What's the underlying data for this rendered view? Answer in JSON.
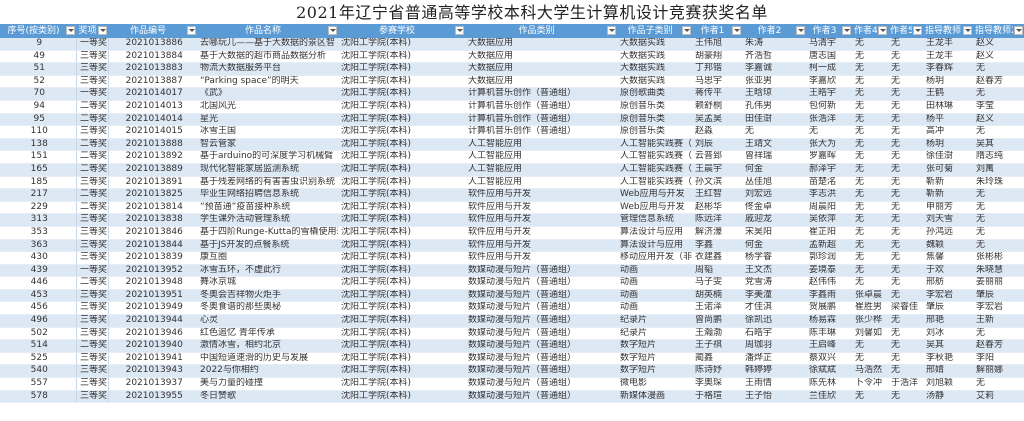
{
  "title": "2021年辽宁省普通高等学校本科大学生计算机设计竞赛获奖名单",
  "colors": {
    "header_bg": "#5b9bd5",
    "alt_row": "#dde8f5"
  },
  "columns": [
    "序号(按类别)",
    "奖项",
    "作品编号",
    "作品名称",
    "参赛学校",
    "作品类别",
    "作品子类别",
    "作者1",
    "作者2",
    "作者3",
    "作者4",
    "作者5",
    "指导教师1",
    "指导教师2"
  ],
  "rows": [
    [
      "9",
      "一等奖",
      "2021013886",
      "去哪玩儿——基于大数据的景区智",
      "沈阳工学院(本科)",
      "大数据应用",
      "大数据实践",
      "王伟旭",
      "朱涛",
      "马清宇",
      "无",
      "无",
      "王龙丰",
      "赵义"
    ],
    [
      "49",
      "三等奖",
      "2021013884",
      "基于大数据的超市商品数据分析",
      "沈阳工学院(本科)",
      "大数据应用",
      "大数据实践",
      "胡豪翔",
      "齐浩哲",
      "唐志国",
      "无",
      "无",
      "王龙丰",
      "赵义"
    ],
    [
      "51",
      "三等奖",
      "2021013883",
      "物流大数据服务平台",
      "沈阳工学院(本科)",
      "大数据应用",
      "大数据实践",
      "丁邦锴",
      "李嘉诚",
      "柯一成",
      "无",
      "无",
      "李春辉",
      "无"
    ],
    [
      "52",
      "三等奖",
      "2021013887",
      "“Parking space”的明天",
      "沈阳工学院(本科)",
      "大数据应用",
      "大数据实践",
      "马思宇",
      "张亚男",
      "李嘉欣",
      "无",
      "无",
      "杨玥",
      "赵春芳"
    ],
    [
      "70",
      "一等奖",
      "2021014017",
      "《武》",
      "沈阳工学院(本科)",
      "计算机音乐创作（普通组）",
      "原创歌曲类",
      "蒋传平",
      "王晗琼",
      "王皓宇",
      "无",
      "无",
      "王鹤",
      "无"
    ],
    [
      "94",
      "二等奖",
      "2021014013",
      "北国风光",
      "沈阳工学院(本科)",
      "计算机音乐创作（普通组）",
      "原创音乐类",
      "赖舒桐",
      "孔伟男",
      "包何新",
      "无",
      "无",
      "田林琳",
      "李莹"
    ],
    [
      "95",
      "二等奖",
      "2021014014",
      "星光",
      "沈阳工学院(本科)",
      "计算机音乐创作（普通组）",
      "原创音乐类",
      "吴孟昊",
      "田佳澍",
      "张浩洋",
      "无",
      "无",
      "杨平",
      "赵义"
    ],
    [
      "110",
      "三等奖",
      "2021014015",
      "冰雪王国",
      "沈阳工学院(本科)",
      "计算机音乐创作（普通组）",
      "原创音乐类",
      "赵淼",
      "无",
      "无",
      "无",
      "无",
      "高冲",
      "无"
    ],
    [
      "138",
      "二等奖",
      "2021013888",
      "智云管家",
      "沈阳工学院(本科)",
      "人工智能应用",
      "人工智能实践赛（",
      "刘辰",
      "王靖文",
      "张大为",
      "无",
      "无",
      "杨玥",
      "吴其"
    ],
    [
      "151",
      "二等奖",
      "2021013892",
      "基于arduino的可深度学习机械臂",
      "沈阳工学院(本科)",
      "人工智能应用",
      "人工智能实践赛（",
      "云普郅",
      "曾祥瑞",
      "罗嘉晖",
      "无",
      "无",
      "徐佳澍",
      "隋志纯"
    ],
    [
      "165",
      "二等奖",
      "2021013889",
      "现代化智能家居监测系统",
      "沈阳工学院(本科)",
      "人工智能应用",
      "人工智能实践赛（",
      "王晨宇",
      "何金",
      "郝泽宇",
      "无",
      "无",
      "张可菊",
      "刘萬"
    ],
    [
      "185",
      "三等奖",
      "2021013891",
      "基于残差网络的有害害虫识别系统",
      "沈阳工学院(本科)",
      "人工智能应用",
      "人工智能实践赛（",
      "孙文滨",
      "丛佳旭",
      "苗楚洺",
      "无",
      "无",
      "靳新",
      "朱玲珠"
    ],
    [
      "217",
      "二等奖",
      "2021013825",
      "毕业生网络招聘信息系统",
      "沈阳工学院(本科)",
      "软件应用与开发",
      "Web应用与开发",
      "王红智",
      "刘宏远",
      "李志洪",
      "无",
      "无",
      "靳新",
      "无"
    ],
    [
      "229",
      "二等奖",
      "2021013814",
      "“预苗通”疫苗接种系统",
      "沈阳工学院(本科)",
      "软件应用与开发",
      "Web应用与开发",
      "赵彬华",
      "佟金卓",
      "周晨阳",
      "无",
      "无",
      "申丽芳",
      "无"
    ],
    [
      "313",
      "三等奖",
      "2021013838",
      "学生课外活动管理系统",
      "沈阳工学院(本科)",
      "软件应用与开发",
      "管理信息系统",
      "陈远洋",
      "戚迎龙",
      "吴依萍",
      "无",
      "无",
      "刘天雪",
      "无"
    ],
    [
      "353",
      "三等奖",
      "2021013846",
      "基于四阶Runge-Kutta的雪橇使用寿",
      "沈阳工学院(本科)",
      "软件应用与开发",
      "算法设计与应用",
      "解济濠",
      "宋昊阳",
      "崔芷阳",
      "无",
      "无",
      "孙鸿远",
      "无"
    ],
    [
      "363",
      "三等奖",
      "2021013844",
      "基于JS开发的点餐系统",
      "沈阳工学院(本科)",
      "软件应用与开发",
      "算法设计与应用",
      "李鑫",
      "何金",
      "孟新超",
      "无",
      "无",
      "魏颖",
      "无"
    ],
    [
      "430",
      "三等奖",
      "2021013839",
      "康互圈",
      "沈阳工学院(本科)",
      "软件应用与开发",
      "移动应用开发（非",
      "衣建鑫",
      "杨学睿",
      "郭珍润",
      "无",
      "无",
      "焦馨",
      "张彬彬"
    ],
    [
      "439",
      "一等奖",
      "2021013952",
      "冰雪五环，不虚此行",
      "沈阳工学院(本科)",
      "数媒动漫与短片（普通组）",
      "动画",
      "周韬",
      "王文杰",
      "姜境泰",
      "无",
      "无",
      "于欢",
      "朱晓慧"
    ],
    [
      "446",
      "二等奖",
      "2021013948",
      "舞冰京城",
      "沈阳工学院(本科)",
      "数媒动漫与短片（普通组）",
      "动画",
      "马子雯",
      "党雪涛",
      "赵伟伟",
      "无",
      "无",
      "邢舫",
      "姜丽丽"
    ],
    [
      "453",
      "三等奖",
      "2021013951",
      "冬奥会吉祥物火炬手",
      "沈阳工学院(本科)",
      "数媒动漫与短片（普通组）",
      "动画",
      "胡英楠",
      "李美潼",
      "李鑫雨",
      "张卓晨",
      "无",
      "李宏岩",
      "肇辰"
    ],
    [
      "456",
      "三等奖",
      "2021013949",
      "冬奥食谱的那些奥秘",
      "沈阳工学院(本科)",
      "数媒动漫与短片（普通组）",
      "动画",
      "王诺泽",
      "才佳淇",
      "贺展鹏",
      "崔胜男",
      "梁睿佳",
      "肇辰",
      "李宏岩"
    ],
    [
      "496",
      "三等奖",
      "2021013944",
      "心灵",
      "沈阳工学院(本科)",
      "数媒动漫与短片（普通组）",
      "纪录片",
      "曾尚鹏",
      "徐凯迅",
      "杨易霖",
      "张少桦",
      "无",
      "邢艳",
      "王新"
    ],
    [
      "502",
      "三等奖",
      "2021013946",
      "红色追忆 青年传承",
      "沈阳工学院(本科)",
      "数媒动漫与短片（普通组）",
      "纪录片",
      "王瀚渤",
      "石皓宇",
      "陈丰琳",
      "刘馨如",
      "无",
      "刘冰",
      "无"
    ],
    [
      "514",
      "二等奖",
      "2021013940",
      "激情冰雪，相约北京",
      "沈阳工学院(本科)",
      "数媒动漫与短片（普通组）",
      "数字短片",
      "王子祺",
      "周珈羽",
      "王启峰",
      "无",
      "无",
      "吴其",
      "赵春芳"
    ],
    [
      "525",
      "三等奖",
      "2021013941",
      "中国短道速滑的历史与发展",
      "沈阳工学院(本科)",
      "数媒动漫与短片（普通组）",
      "数字短片",
      "蔺鑫",
      "潘烨芷",
      "蔡双兴",
      "无",
      "无",
      "李秋艳",
      "李阳"
    ],
    [
      "540",
      "三等奖",
      "2021013943",
      "2022与你相约",
      "沈阳工学院(本科)",
      "数媒动漫与短片（普通组）",
      "数字短片",
      "陈诗妤",
      "韩婷婷",
      "徐斌斌",
      "马浩然",
      "无",
      "邢婧",
      "解丽娜"
    ],
    [
      "557",
      "三等奖",
      "2021013937",
      "美与力量的碰撞",
      "沈阳工学院(本科)",
      "数媒动漫与短片（普通组）",
      "微电影",
      "李奥琛",
      "王雨情",
      "陈先林",
      "卜令冲",
      "于浩洋",
      "刘旭颖",
      "无"
    ],
    [
      "578",
      "三等奖",
      "2021013955",
      "冬日赞歌",
      "沈阳工学院(本科)",
      "数媒动漫与短片（普通组）",
      "新媒体漫画",
      "于格瑄",
      "王子怡",
      "兰佳欣",
      "无",
      "无",
      "汤静",
      "艾莉"
    ]
  ]
}
